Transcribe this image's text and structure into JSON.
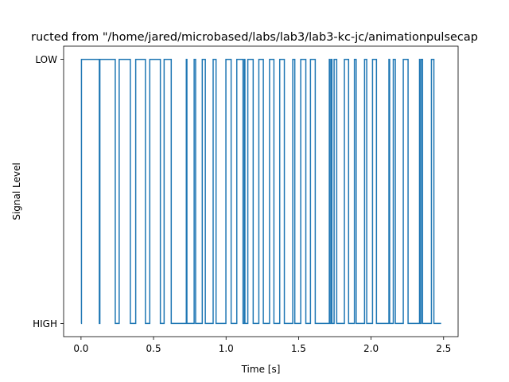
{
  "chart_data": {
    "type": "line",
    "drawstyle": "steps",
    "title": "ructed from \"/home/jared/microbased/labs/lab3/lab3-kc-jc/animationpulsecap",
    "xlabel": "Time [s]",
    "ylabel": "Signal Level",
    "xlim": [
      -0.12,
      2.6
    ],
    "ylim": [
      -0.05,
      1.05
    ],
    "x_ticks": [
      {
        "value": 0.0,
        "label": "0.0"
      },
      {
        "value": 0.5,
        "label": "0.5"
      },
      {
        "value": 1.0,
        "label": "1.0"
      },
      {
        "value": 1.5,
        "label": "1.5"
      },
      {
        "value": 2.0,
        "label": "2.0"
      },
      {
        "value": 2.5,
        "label": "2.5"
      }
    ],
    "y_ticks": [
      {
        "value": 0,
        "label": "HIGH"
      },
      {
        "value": 1,
        "label": "LOW"
      }
    ],
    "grid": false,
    "legend": "none",
    "color": "#1f77b4",
    "series": [
      {
        "x": [
          0.0,
          0.003,
          0.126,
          0.13,
          0.236,
          0.263,
          0.34,
          0.377,
          0.444,
          0.474,
          0.547,
          0.573,
          0.622,
          0.726,
          0.73,
          0.78,
          0.79,
          0.836,
          0.857,
          0.911,
          0.931,
          0.999,
          1.035,
          1.074,
          1.117,
          1.126,
          1.13,
          1.15,
          1.187,
          1.226,
          1.257,
          1.3,
          1.33,
          1.37,
          1.402,
          1.46,
          1.474,
          1.515,
          1.55,
          1.582,
          1.615,
          1.712,
          1.717,
          1.726,
          1.73,
          1.745,
          1.763,
          1.816,
          1.845,
          1.885,
          1.897,
          1.955,
          1.97,
          2.01,
          2.037,
          2.123,
          2.128,
          2.153,
          2.167,
          2.222,
          2.255,
          2.334,
          2.336,
          2.345,
          2.355,
          2.416,
          2.433,
          2.483
        ],
        "y": [
          0,
          1,
          0,
          1,
          0,
          1,
          0,
          1,
          0,
          1,
          0,
          1,
          0,
          1,
          0,
          1,
          0,
          1,
          0,
          1,
          0,
          1,
          0,
          1,
          0,
          1,
          0,
          1,
          0,
          1,
          0,
          1,
          0,
          1,
          0,
          1,
          0,
          1,
          0,
          1,
          0,
          1,
          0,
          1,
          0,
          1,
          0,
          1,
          0,
          1,
          0,
          1,
          0,
          1,
          0,
          1,
          0,
          1,
          0,
          1,
          0,
          1,
          0,
          1,
          0,
          1,
          0,
          0
        ]
      }
    ]
  }
}
